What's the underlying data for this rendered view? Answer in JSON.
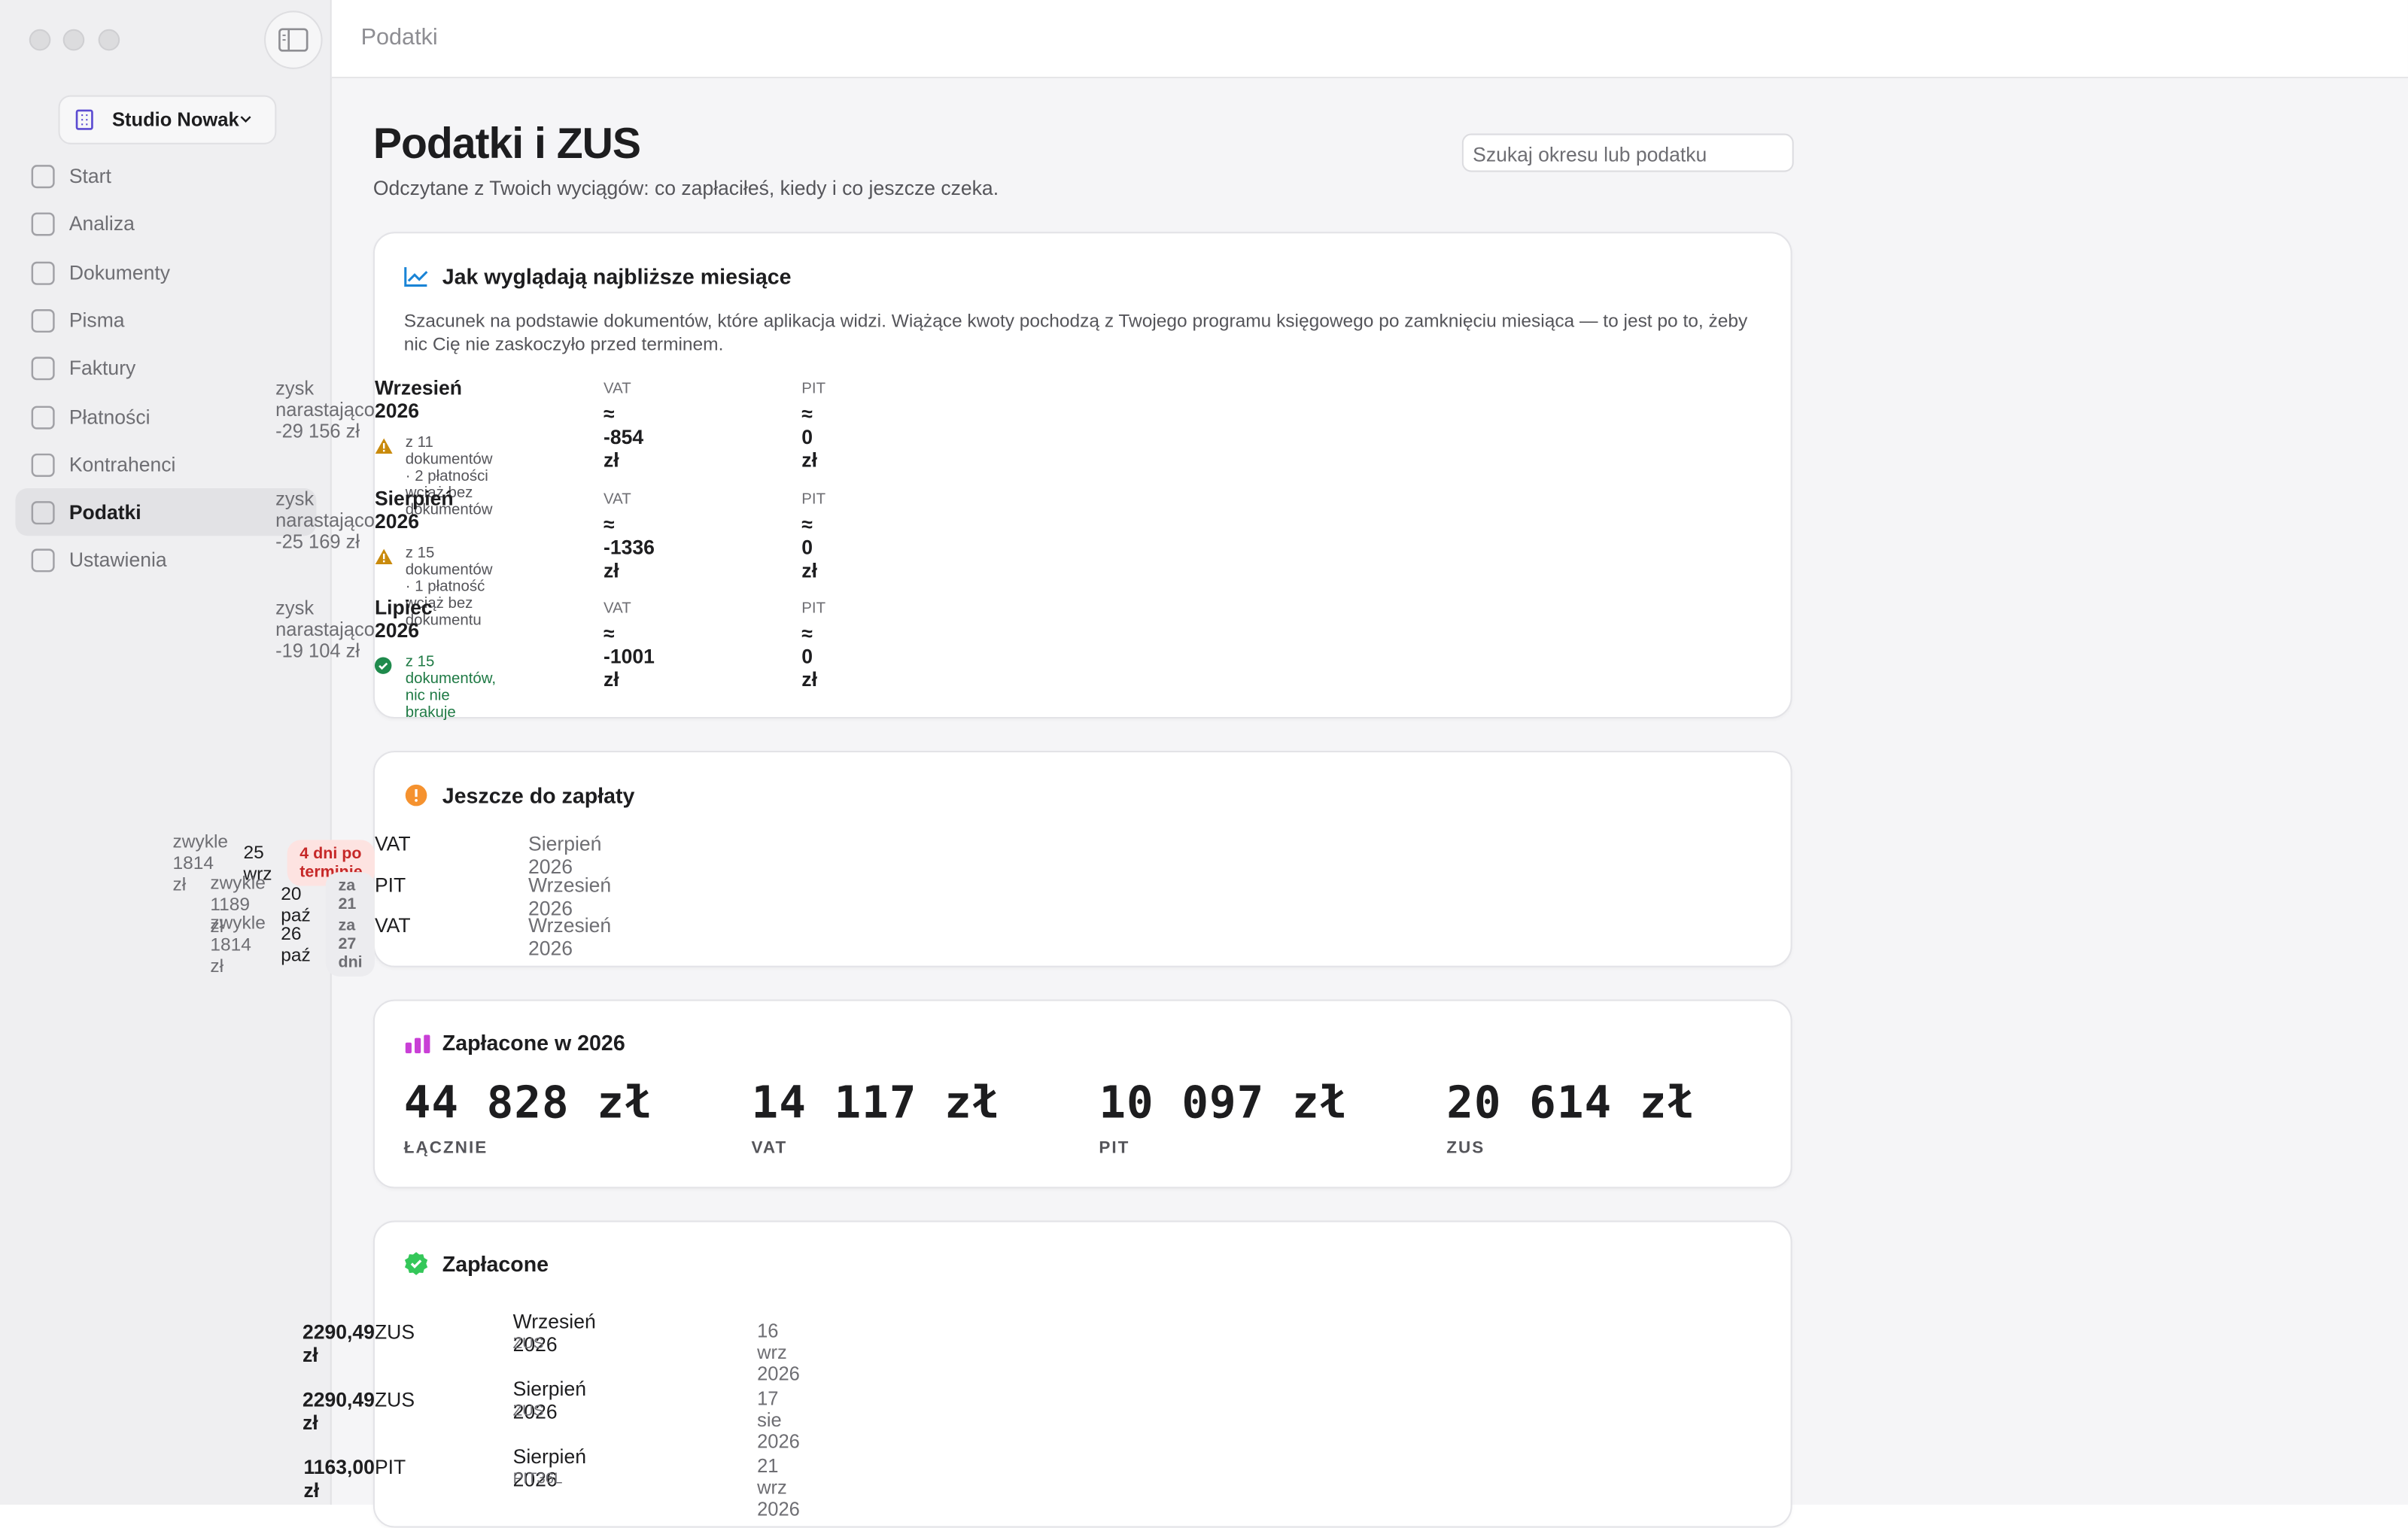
{
  "header": {
    "title": "Podatki"
  },
  "sidebar": {
    "workspace": "Studio Nowak",
    "nav": [
      "Start",
      "Analiza",
      "Dokumenty",
      "Pisma",
      "Faktury",
      "Płatności",
      "Kontrahenci",
      "Podatki",
      "Ustawienia"
    ],
    "active": 7
  },
  "page": {
    "title": "Podatki i ZUS",
    "subtitle": "Odczytane z Twoich wyciągów: co zapłaciłeś, kiedy i co jeszcze czeka.",
    "search_placeholder": "Szukaj okresu lub podatku"
  },
  "forecast": {
    "title": "Jak wyglądają najbliższe miesiące",
    "description": "Szacunek na podstawie dokumentów, które aplikacja widzi. Wiążące kwoty pochodzą z Twojego programu księgowego po zamknięciu miesiąca — to jest po to, żeby nic Cię nie zaskoczyło przed terminem.",
    "months": [
      {
        "name": "Wrzesień 2026",
        "vat_label": "VAT",
        "vat": "≈ -854 zł",
        "pit_label": "PIT",
        "pit": "≈ 0 zł",
        "profit": "zysk narastająco -29 156 zł",
        "note": "z 11 dokumentów · 2 płatności wciąż bez dokumentów",
        "status": "warning"
      },
      {
        "name": "Sierpień 2026",
        "vat_label": "VAT",
        "vat": "≈ -1336 zł",
        "pit_label": "PIT",
        "pit": "≈ 0 zł",
        "profit": "zysk narastająco -25 169 zł",
        "note": "z 15 dokumentów · 1 płatność wciąż bez dokumentu",
        "status": "warning"
      },
      {
        "name": "Lipiec 2026",
        "vat_label": "VAT",
        "vat": "≈ -1001 zł",
        "pit_label": "PIT",
        "pit": "≈ 0 zł",
        "profit": "zysk narastająco -19 104 zł",
        "note": "z 15 dokumentów, nic nie brakuje",
        "status": "ok"
      }
    ]
  },
  "due": {
    "title": "Jeszcze do zapłaty",
    "rows": [
      {
        "tax": "VAT",
        "period": "Sierpień 2026",
        "usual": "zwykle 1814 zł",
        "date": "25 wrz",
        "badge": "4 dni po terminie",
        "overdue": true
      },
      {
        "tax": "PIT",
        "period": "Wrzesień 2026",
        "usual": "zwykle 1189 zł",
        "date": "20 paź",
        "badge": "za 21 dni",
        "overdue": false
      },
      {
        "tax": "VAT",
        "period": "Wrzesień 2026",
        "usual": "zwykle 1814 zł",
        "date": "26 paź",
        "badge": "za 27 dni",
        "overdue": false
      }
    ]
  },
  "paid_summary": {
    "title": "Zapłacone w 2026",
    "stats": [
      {
        "amount": "44 828 zł",
        "label": "ŁĄCZNIE"
      },
      {
        "amount": "14 117 zł",
        "label": "VAT"
      },
      {
        "amount": "10 097 zł",
        "label": "PIT"
      },
      {
        "amount": "20 614 zł",
        "label": "ZUS"
      }
    ]
  },
  "paid": {
    "title": "Zapłacone",
    "rows": [
      {
        "tax": "ZUS",
        "period": "Wrzesień 2026",
        "form": "ZUS",
        "date": "16 wrz 2026",
        "amount": "2290,49 zł"
      },
      {
        "tax": "ZUS",
        "period": "Sierpień 2026",
        "form": "ZUS",
        "date": "17 sie 2026",
        "amount": "2290,49 zł"
      },
      {
        "tax": "PIT",
        "period": "Sierpień 2026",
        "form": "PIT36L",
        "date": "21 wrz 2026",
        "amount": "1163,00 zł"
      }
    ]
  }
}
